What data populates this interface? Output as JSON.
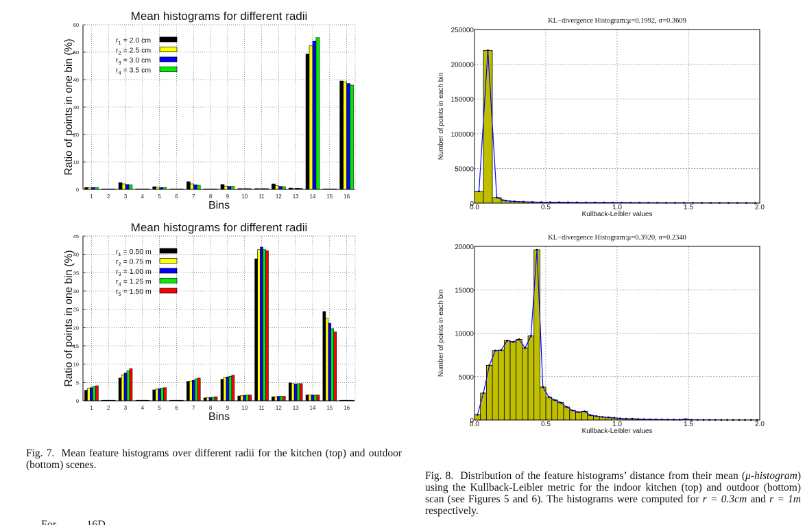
{
  "figures": {
    "fig7": {
      "caption_label": "Fig. 7.",
      "caption_text": "Mean feature histograms over different radii for the kitchen (top) and outdoor (bottom) scenes."
    },
    "fig8": {
      "caption_label": "Fig. 8.",
      "caption_text_1": "Distribution of the feature histograms’ distance from their mean (",
      "caption_mu": "μ-histogram",
      "caption_text_2": ") using the Kullback-Leibler metric for the indoor kitchen (top) and outdoor (bottom) scan (see Figures 5 and 6). The histograms were computed for ",
      "caption_r1": "r = 0.3cm",
      "caption_text_3": " and ",
      "caption_r2": "r = 1m",
      "caption_text_4": " respectively."
    },
    "body_text_cutoff": "For    …    …    16D"
  },
  "chart_data": [
    {
      "id": "fig7-top",
      "type": "bar",
      "title": "Mean histograms for different radii",
      "xlabel": "Bins",
      "ylabel": "Ratio of points in one bin (%)",
      "ylim": [
        0,
        60
      ],
      "yticks": [
        0,
        10,
        20,
        30,
        40,
        50,
        60
      ],
      "grid": true,
      "legend_position": "upper-left",
      "categories": [
        "1",
        "2",
        "3",
        "4",
        "5",
        "6",
        "7",
        "8",
        "9",
        "10",
        "11",
        "12",
        "13",
        "14",
        "15",
        "16"
      ],
      "series": [
        {
          "name": "r1 = 2.0 cm",
          "sub": "1",
          "val": "2.0 cm",
          "color": "#000000",
          "values": [
            0.7,
            0.1,
            2.5,
            0.1,
            1.0,
            0.1,
            2.8,
            0.2,
            1.8,
            0.3,
            0.3,
            2.0,
            0.5,
            49.3,
            0.1,
            39.5
          ]
        },
        {
          "name": "r2 = 2.5 cm",
          "sub": "2",
          "val": "2.5 cm",
          "color": "#ffff00",
          "values": [
            0.6,
            0.1,
            2.0,
            0.1,
            0.8,
            0.1,
            2.0,
            0.2,
            1.2,
            0.3,
            0.3,
            1.4,
            0.4,
            52.3,
            0.1,
            39.2
          ]
        },
        {
          "name": "r3 = 3.0 cm",
          "sub": "3",
          "val": "3.0 cm",
          "color": "#0000ff",
          "values": [
            0.7,
            0.1,
            1.8,
            0.1,
            0.7,
            0.1,
            1.7,
            0.2,
            1.1,
            0.3,
            0.3,
            1.1,
            0.4,
            54.0,
            0.1,
            38.6
          ]
        },
        {
          "name": "r4 = 3.5 cm",
          "sub": "4",
          "val": "3.5 cm",
          "color": "#00ee00",
          "values": [
            0.7,
            0.1,
            1.7,
            0.1,
            0.7,
            0.1,
            1.5,
            0.2,
            1.1,
            0.3,
            0.3,
            1.0,
            0.4,
            55.3,
            0.1,
            38.0
          ]
        }
      ]
    },
    {
      "id": "fig7-bottom",
      "type": "bar",
      "title": "Mean histograms for different radii",
      "xlabel": "Bins",
      "ylabel": "Ratio of points in one bin (%)",
      "ylim": [
        0,
        45
      ],
      "yticks": [
        0,
        5,
        10,
        15,
        20,
        25,
        30,
        35,
        40,
        45
      ],
      "grid": true,
      "legend_position": "upper-left",
      "categories": [
        "1",
        "2",
        "3",
        "4",
        "5",
        "6",
        "7",
        "8",
        "9",
        "10",
        "11",
        "12",
        "13",
        "14",
        "15",
        "16"
      ],
      "series": [
        {
          "name": "r1 = 0.50 m",
          "sub": "1",
          "val": "0.50 m",
          "color": "#000000",
          "values": [
            2.9,
            0,
            6.2,
            0,
            3.0,
            0,
            5.3,
            0.8,
            5.9,
            1.3,
            38.8,
            1.1,
            4.9,
            1.6,
            24.4,
            0
          ]
        },
        {
          "name": "r2 = 0.75 m",
          "sub": "2",
          "val": "0.75 m",
          "color": "#ffff00",
          "values": [
            3.4,
            0,
            7.1,
            0,
            3.2,
            0,
            5.4,
            0.9,
            6.3,
            1.4,
            41.3,
            1.1,
            4.7,
            1.6,
            22.6,
            0
          ]
        },
        {
          "name": "r3 = 1.00 m",
          "sub": "3",
          "val": "1.00 m",
          "color": "#0000ff",
          "values": [
            3.6,
            0,
            7.6,
            0,
            3.3,
            0,
            5.6,
            0.9,
            6.5,
            1.5,
            42.0,
            1.2,
            4.6,
            1.6,
            21.2,
            0
          ]
        },
        {
          "name": "r4 = 1.25 m",
          "sub": "4",
          "val": "1.25 m",
          "color": "#00ee00",
          "values": [
            3.9,
            0,
            8.2,
            0,
            3.5,
            0,
            6.0,
            1.0,
            6.7,
            1.6,
            41.3,
            1.2,
            4.7,
            1.6,
            19.7,
            0
          ]
        },
        {
          "name": "r5 = 1.50 m",
          "sub": "5",
          "val": "1.50 m",
          "color": "#ff0000",
          "values": [
            4.1,
            0,
            8.8,
            0,
            3.6,
            0,
            6.2,
            1.1,
            7.0,
            1.6,
            41.0,
            1.2,
            4.7,
            1.6,
            18.8,
            0
          ]
        }
      ]
    },
    {
      "id": "fig8-top",
      "type": "bar",
      "title": "KL−divergence Histogram:μ=0.1992, σ=0.3609",
      "xlabel": "Kullback-Leibler values",
      "ylabel": "Number of points in each bin",
      "xlim": [
        0.0,
        2.0
      ],
      "ylim": [
        0,
        250000
      ],
      "xticks": [
        "0.0",
        "0.5",
        "1.0",
        "1.5",
        "2.0"
      ],
      "yticks": [
        "0",
        "50000",
        "100000",
        "150000",
        "200000",
        "250000"
      ],
      "grid": true,
      "bar_color": "#bfbf00",
      "line_color": "#0000ff",
      "bin_width": 0.0625,
      "values": [
        17000,
        220000,
        8000,
        3500,
        2500,
        2000,
        1600,
        1400,
        1300,
        1200,
        1100,
        1000,
        950,
        900,
        850,
        800,
        750,
        700,
        650,
        600,
        550,
        500,
        480,
        460,
        440,
        420,
        400,
        380,
        360,
        340,
        320,
        300
      ]
    },
    {
      "id": "fig8-bottom",
      "type": "bar",
      "title": "KL−divergence Histogram:μ=0.3920, σ=0.2340",
      "xlabel": "Kullback-Leibler values",
      "ylabel": "Number of points in each bin",
      "xlim": [
        0.0,
        2.0
      ],
      "ylim": [
        0,
        20000
      ],
      "xticks": [
        "0.0",
        "0.5",
        "1.0",
        "1.5",
        "2.0"
      ],
      "yticks": [
        "0",
        "5000",
        "10000",
        "15000",
        "20000"
      ],
      "grid": true,
      "bar_color": "#bfbf00",
      "line_color": "#0000ff",
      "bin_width": 0.0417,
      "values": [
        600,
        3100,
        6300,
        8000,
        8050,
        9150,
        9000,
        9300,
        8300,
        9700,
        19600,
        3800,
        2650,
        2300,
        2000,
        1500,
        1100,
        900,
        1000,
        550,
        450,
        350,
        300,
        250,
        180,
        150,
        150,
        100,
        80,
        70,
        60,
        50,
        40,
        40,
        30,
        100,
        20,
        15,
        10,
        10,
        10,
        8,
        6,
        5,
        5,
        4,
        3,
        2
      ]
    }
  ]
}
